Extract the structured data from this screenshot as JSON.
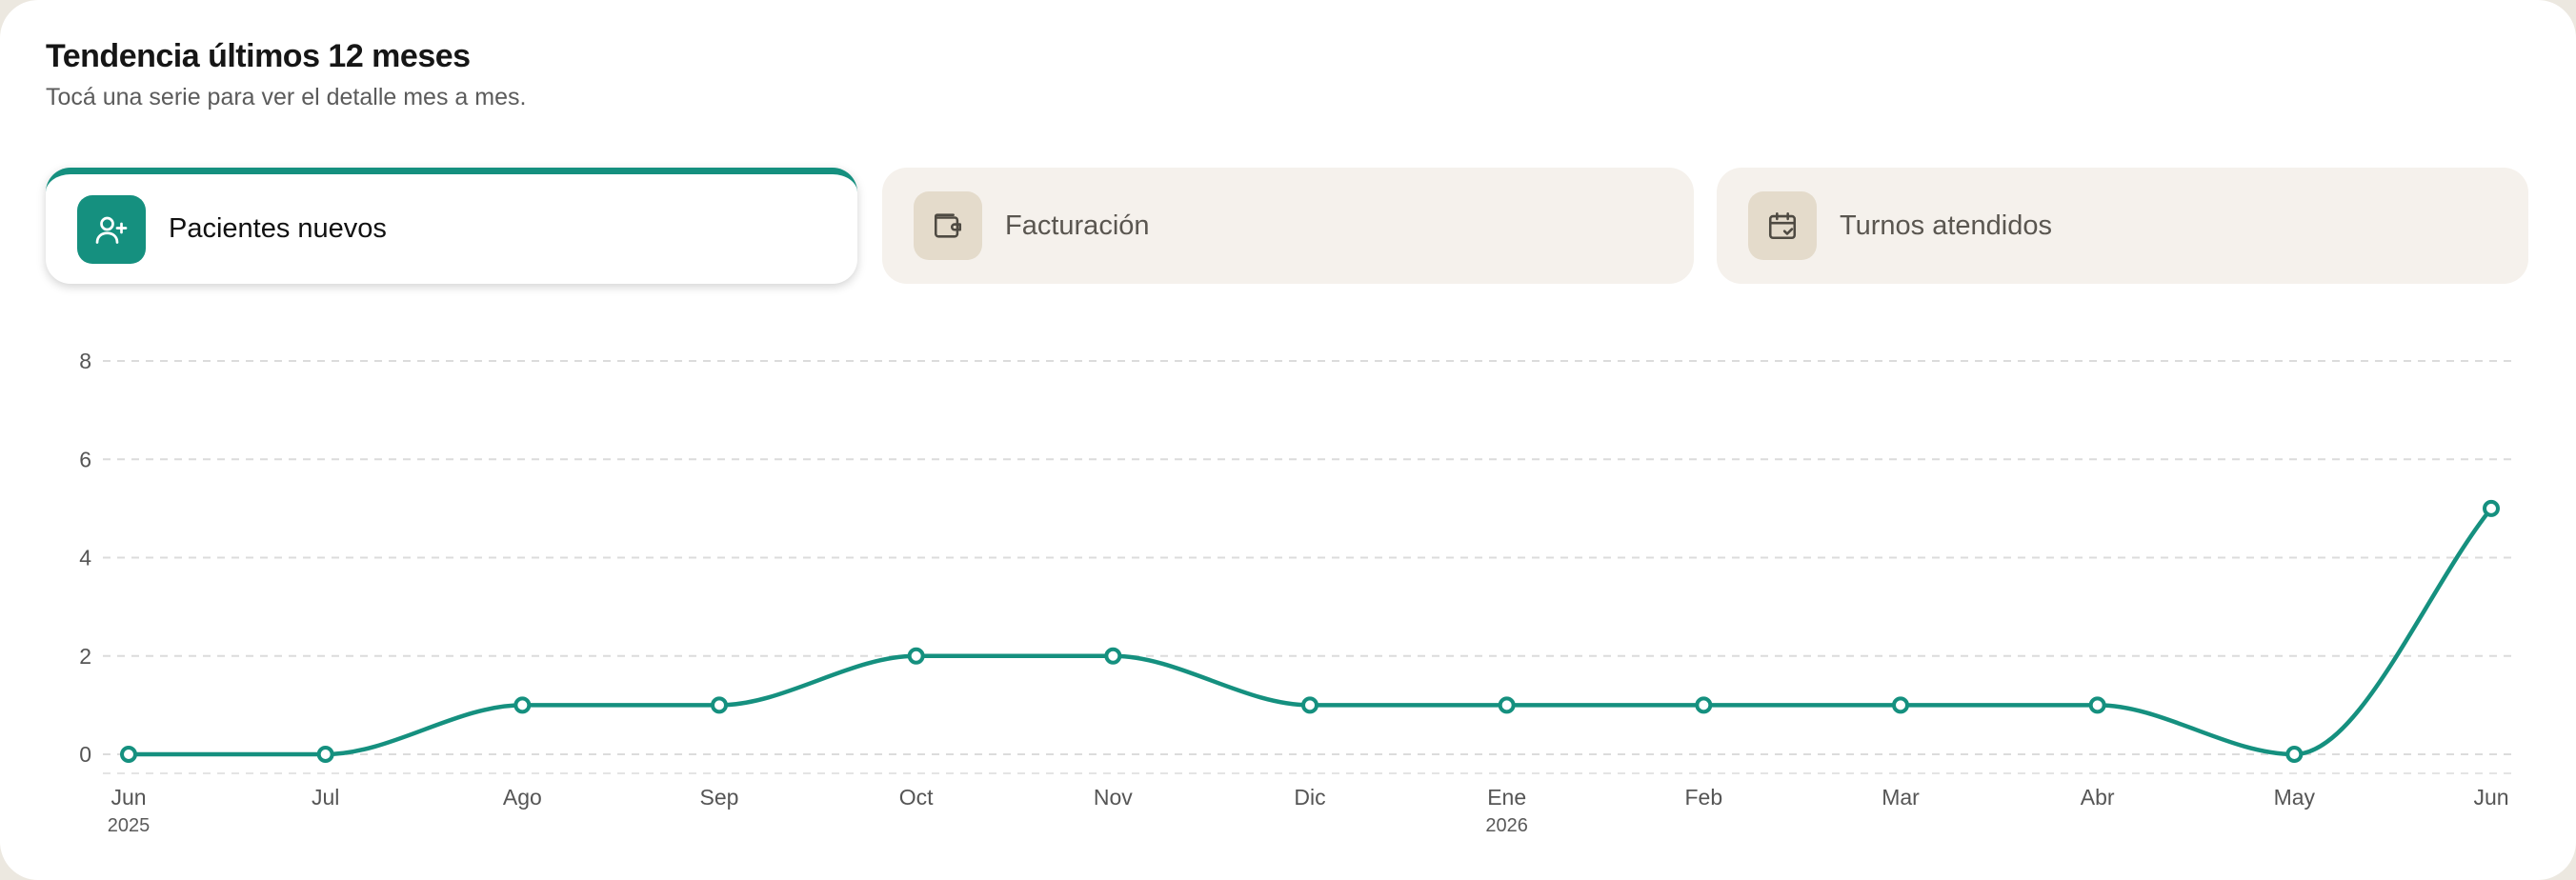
{
  "header": {
    "title": "Tendencia últimos 12 meses",
    "subtitle": "Tocá una serie para ver el detalle mes a mes."
  },
  "tabs": [
    {
      "label": "Pacientes nuevos",
      "icon": "user-plus-icon",
      "active": true
    },
    {
      "label": "Facturación",
      "icon": "wallet-icon",
      "active": false
    },
    {
      "label": "Turnos atendidos",
      "icon": "calendar-check-icon",
      "active": false
    }
  ],
  "colors": {
    "accent": "#15907f",
    "tab_inactive_bg": "#f5f1ec",
    "icon_inactive_bg": "#e4dbcb"
  },
  "chart_data": {
    "type": "line",
    "title": "",
    "xlabel": "",
    "ylabel": "",
    "categories": [
      "Jun",
      "Jul",
      "Ago",
      "Sep",
      "Oct",
      "Nov",
      "Dic",
      "Ene",
      "Feb",
      "Mar",
      "Abr",
      "May",
      "Jun"
    ],
    "year_labels": [
      {
        "index": 0,
        "label": "2025"
      },
      {
        "index": 7,
        "label": "2026"
      }
    ],
    "series": [
      {
        "values": [
          0,
          0,
          1,
          1,
          2,
          2,
          1,
          1,
          1,
          1,
          1,
          0,
          5
        ]
      }
    ],
    "yticks": [
      0,
      2,
      4,
      6,
      8
    ],
    "ylim": [
      0,
      8
    ],
    "grid": true,
    "legend": "none"
  }
}
